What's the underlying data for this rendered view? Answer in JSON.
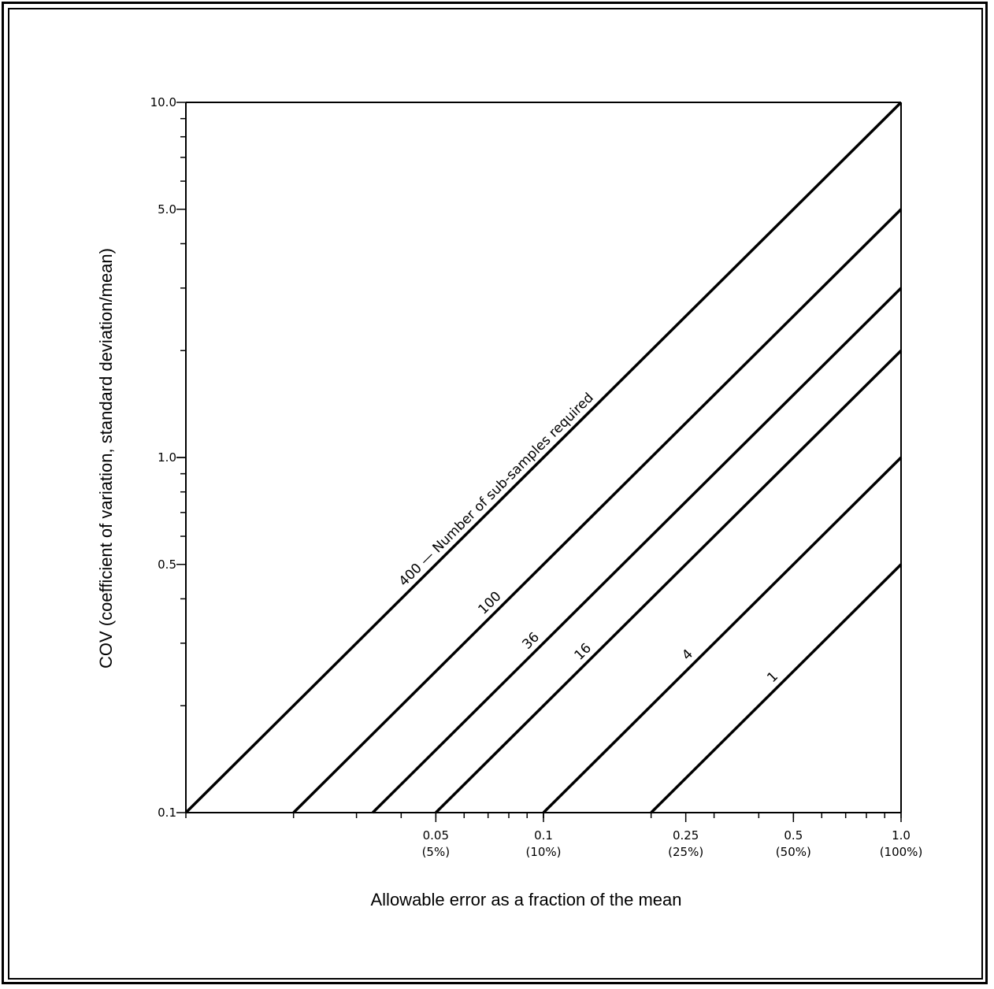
{
  "chart_data": {
    "type": "line",
    "xlabel": "Allowable error as a fraction of the mean",
    "ylabel": "COV (coefficient of variation, standard deviation/mean)",
    "x_scale": "log",
    "y_scale": "log",
    "xlim": [
      0.01,
      1.0
    ],
    "ylim": [
      0.1,
      10.0
    ],
    "grid": false,
    "x_ticks": [
      {
        "value": 0.05,
        "label": "0.05",
        "sublabel": "(5%)"
      },
      {
        "value": 0.1,
        "label": "0.1",
        "sublabel": "(10%)"
      },
      {
        "value": 0.25,
        "label": "0.25",
        "sublabel": "(25%)"
      },
      {
        "value": 0.5,
        "label": "0.5",
        "sublabel": "(50%)"
      },
      {
        "value": 1.0,
        "label": "1.0",
        "sublabel": "(100%)"
      }
    ],
    "y_ticks": [
      {
        "value": 0.1,
        "label": "0.1"
      },
      {
        "value": 0.5,
        "label": "0.5"
      },
      {
        "value": 1.0,
        "label": "1.0"
      },
      {
        "value": 5.0,
        "label": "5.0"
      },
      {
        "value": 10.0,
        "label": "10.0"
      }
    ],
    "series": [
      {
        "name": "400 — Number of sub-samples required",
        "label": "400 — Number of sub-samples required",
        "label_at": 0.042,
        "points": [
          [
            0.01,
            0.1
          ],
          [
            1.0,
            10.0
          ]
        ]
      },
      {
        "name": "100",
        "label": "100",
        "label_at": 0.07,
        "points": [
          [
            0.02,
            0.1
          ],
          [
            1.0,
            5.0
          ]
        ]
      },
      {
        "name": "36",
        "label": "36",
        "label_at": 0.093,
        "points": [
          [
            0.0333,
            0.1
          ],
          [
            1.0,
            3.0
          ]
        ]
      },
      {
        "name": "16",
        "label": "16",
        "label_at": 0.13,
        "points": [
          [
            0.05,
            0.1
          ],
          [
            1.0,
            2.0
          ]
        ]
      },
      {
        "name": "4",
        "label": "4",
        "label_at": 0.26,
        "points": [
          [
            0.1,
            0.1
          ],
          [
            1.0,
            1.0
          ]
        ]
      },
      {
        "name": "1",
        "label": "1",
        "label_at": 0.45,
        "points": [
          [
            0.2,
            0.1
          ],
          [
            1.0,
            0.5
          ]
        ]
      }
    ]
  }
}
